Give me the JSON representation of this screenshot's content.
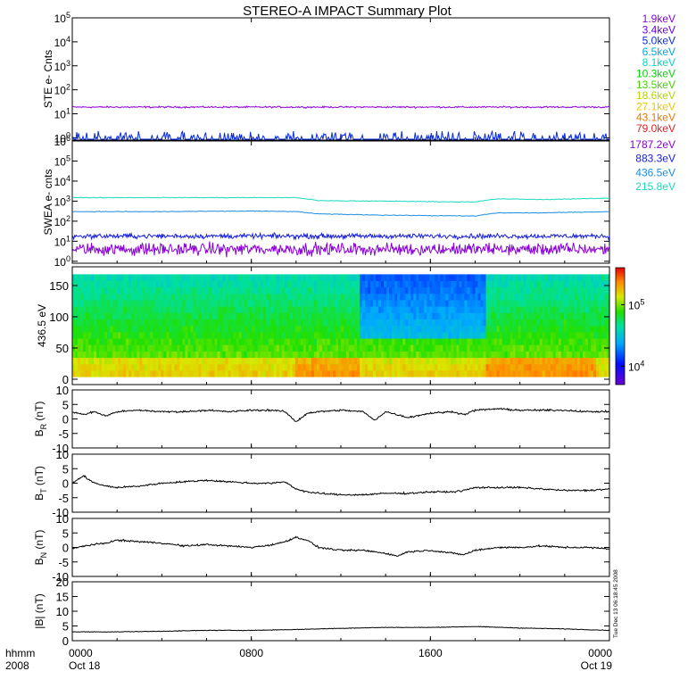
{
  "title": "STEREO-A IMPACT Summary Plot",
  "time_axis": {
    "row1_label": "hhmm",
    "row2_label": "2008",
    "ticks": [
      {
        "t": 0,
        "hhmm": "0000",
        "date": "Oct 18"
      },
      {
        "t": 8,
        "hhmm": "0800",
        "date": ""
      },
      {
        "t": 16,
        "hhmm": "1600",
        "date": ""
      },
      {
        "t": 24,
        "hhmm": "0000",
        "date": "Oct 19"
      }
    ],
    "range_hours": [
      0,
      24
    ]
  },
  "side_stamp": "Tue Dec 13 06:18:45 2008",
  "colors": {
    "ste_energies": [
      "#8b00d9",
      "#6a00d9",
      "#0a2be0",
      "#00a8d8",
      "#00d8c8",
      "#00d400",
      "#40d400",
      "#b8d400",
      "#e8c800",
      "#e87800",
      "#e02020"
    ],
    "swea_energies": [
      "#8b00d9",
      "#1820e0",
      "#1c8ce0",
      "#18d8c0"
    ]
  },
  "chart_data": [
    {
      "type": "line",
      "id": "ste",
      "ylabel": "STE e- Cnts",
      "yscale": "log",
      "ylim": [
        0.8,
        100000
      ],
      "yticks": [
        {
          "v": 1,
          "base": "10",
          "exp": "0"
        },
        {
          "v": 10,
          "base": "10",
          "exp": "1"
        },
        {
          "v": 100,
          "base": "10",
          "exp": "2"
        },
        {
          "v": 1000,
          "base": "10",
          "exp": "3"
        },
        {
          "v": 10000,
          "base": "10",
          "exp": "4"
        },
        {
          "v": 100000,
          "base": "10",
          "exp": "5"
        }
      ],
      "legend_position": "right",
      "legend": [
        "1.9keV",
        "3.4keV",
        "5.0keV",
        "6.5keV",
        "8.1keV",
        "10.3keV",
        "13.5keV",
        "18.6keV",
        "27.1keV",
        "43.1keV",
        "79.0keV"
      ],
      "series": [
        {
          "name": "1.9keV",
          "level": 19,
          "noise": 0.05
        },
        {
          "name": "5.0keV",
          "level": 1.0,
          "noise": 0.25
        }
      ]
    },
    {
      "type": "line",
      "id": "swea",
      "ylabel": "SWEA e- cnts",
      "yscale": "log",
      "ylim": [
        0.8,
        1000000
      ],
      "yticks": [
        {
          "v": 1,
          "base": "10",
          "exp": "0"
        },
        {
          "v": 10,
          "base": "10",
          "exp": "1"
        },
        {
          "v": 100,
          "base": "10",
          "exp": "2"
        },
        {
          "v": 1000,
          "base": "10",
          "exp": "3"
        },
        {
          "v": 10000,
          "base": "10",
          "exp": "4"
        },
        {
          "v": 100000,
          "base": "10",
          "exp": "5"
        },
        {
          "v": 1000000,
          "base": "10",
          "exp": "6"
        }
      ],
      "legend_position": "right",
      "legend": [
        "1787.2eV",
        "883.3eV",
        "436.5eV",
        "215.8eV"
      ],
      "series": [
        {
          "name": "215.8eV",
          "x": [
            0,
            4,
            8,
            10,
            11,
            14,
            18,
            19,
            21,
            24
          ],
          "y": [
            1500,
            1500,
            1500,
            1500,
            1050,
            1000,
            900,
            1300,
            1200,
            1400
          ]
        },
        {
          "name": "436.5eV",
          "x": [
            0,
            4,
            8,
            10,
            11,
            14,
            18,
            19,
            21,
            24
          ],
          "y": [
            300,
            300,
            320,
            300,
            230,
            200,
            180,
            260,
            260,
            300
          ]
        },
        {
          "name": "883.3eV",
          "level": 18,
          "noise": 0.18
        },
        {
          "name": "1787.2eV",
          "level": 4,
          "noise": 0.45
        }
      ]
    },
    {
      "type": "heatmap",
      "id": "pad",
      "ylabel": "436.5 eV",
      "ylim": [
        0,
        180
      ],
      "yticks": [
        0,
        50,
        100,
        150
      ],
      "zscale": "log",
      "zlim": [
        5000,
        400000
      ],
      "colorbar_ticks": [
        {
          "v": 10000,
          "base": "10",
          "exp": "4"
        },
        {
          "v": 100000,
          "base": "10",
          "exp": "5"
        }
      ],
      "note": "pitch-angle distribution; higher flux at low pitch angle"
    },
    {
      "type": "line",
      "id": "br",
      "ylabel": "B",
      "ylabel_sub": "R",
      "ylabel_unit": "(nT)",
      "ylim": [
        -10,
        10
      ],
      "yticks": [
        -10,
        -5,
        0,
        5,
        10
      ],
      "x": [
        0,
        0.5,
        1,
        1.5,
        2,
        3,
        4,
        5,
        6,
        7,
        8,
        9,
        9.5,
        10,
        10.5,
        11,
        12,
        13,
        13.5,
        14,
        15,
        16,
        17,
        17.5,
        18,
        19,
        20,
        21,
        22,
        23,
        24
      ],
      "y": [
        2.5,
        1.5,
        2.5,
        1,
        2.5,
        3,
        2.5,
        2.5,
        3,
        2.5,
        3,
        3,
        2.5,
        -1,
        2,
        2.5,
        3,
        2.5,
        -0.5,
        2.5,
        0.5,
        2,
        2.5,
        1.5,
        3,
        3.5,
        3,
        3,
        3,
        2.5,
        2.5
      ]
    },
    {
      "type": "line",
      "id": "bt",
      "ylabel": "B",
      "ylabel_sub": "T",
      "ylabel_unit": "(nT)",
      "ylim": [
        -10,
        10
      ],
      "yticks": [
        -10,
        -5,
        0,
        5,
        10
      ],
      "x": [
        0,
        0.5,
        1,
        1.5,
        2,
        3,
        4,
        5,
        6,
        7,
        8,
        9,
        9.5,
        10,
        10.5,
        11,
        12,
        13,
        14,
        15,
        16,
        17,
        17.5,
        18,
        19,
        20,
        21,
        22,
        23,
        24
      ],
      "y": [
        0,
        2.5,
        0,
        -1,
        -1.5,
        -1,
        0,
        0.5,
        1,
        0.5,
        0,
        0,
        0.5,
        -2,
        -3,
        -3.5,
        -4,
        -4,
        -3.5,
        -3.5,
        -3,
        -3,
        -2.5,
        -1.5,
        -1.5,
        -1.5,
        -2,
        -2.5,
        -2.5,
        -2
      ]
    },
    {
      "type": "line",
      "id": "bn",
      "ylabel": "B",
      "ylabel_sub": "N",
      "ylabel_unit": "(nT)",
      "ylim": [
        -10,
        10
      ],
      "yticks": [
        -10,
        -5,
        0,
        5,
        10
      ],
      "x": [
        0,
        0.5,
        1,
        1.5,
        2,
        3,
        4,
        5,
        6,
        7,
        8,
        9,
        9.5,
        10,
        10.5,
        11,
        12,
        13,
        14,
        14.5,
        15,
        16,
        17,
        17.5,
        18,
        19,
        20,
        21,
        22,
        23,
        24
      ],
      "y": [
        -0.5,
        0.5,
        1,
        1.5,
        2.5,
        2,
        1.5,
        0.5,
        1,
        0.5,
        0,
        1,
        2,
        3.5,
        2.5,
        0,
        -1,
        -1,
        -2,
        -3,
        -1.5,
        -1,
        -2,
        -2.5,
        -1,
        0,
        0,
        0.5,
        0,
        0,
        -0.5
      ]
    },
    {
      "type": "line",
      "id": "bmag",
      "ylabel": "|B| (nT)",
      "ylim": [
        0,
        20
      ],
      "yticks": [
        0,
        5,
        10,
        15,
        20
      ],
      "x": [
        0,
        2,
        4,
        6,
        8,
        10,
        12,
        14,
        16,
        18,
        20,
        22,
        24
      ],
      "y": [
        3,
        3,
        3.2,
        3.5,
        3.5,
        3.8,
        4.2,
        4.5,
        4.5,
        4.8,
        4.3,
        4,
        3.5
      ]
    }
  ]
}
